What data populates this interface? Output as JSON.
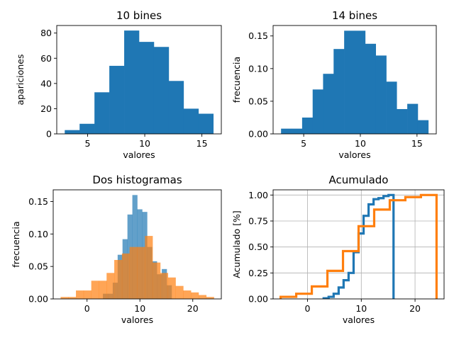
{
  "colors": {
    "blue": "#1f77b4",
    "orange": "#ff7f0e",
    "grid": "#b0b0b0"
  },
  "chart_data": [
    {
      "type": "bar",
      "title": "10 bines",
      "xlabel": "valores",
      "ylabel": "apariciones",
      "bin_edges": [
        3.0,
        4.3,
        5.6,
        6.9,
        8.2,
        9.5,
        10.8,
        12.1,
        13.4,
        14.7,
        16.0
      ],
      "values": [
        3,
        8,
        33,
        54,
        82,
        73,
        69,
        42,
        20,
        16
      ],
      "xlim": [
        2.3,
        16.7
      ],
      "ylim": [
        0,
        86
      ],
      "xticks": [
        5,
        10,
        15
      ],
      "yticks": [
        0,
        20,
        40,
        60,
        80
      ],
      "grid": false
    },
    {
      "type": "bar",
      "title": "14 bines",
      "xlabel": "valores",
      "ylabel": "frecuencia",
      "bin_edges": [
        3.0,
        3.93,
        4.86,
        5.79,
        6.71,
        7.64,
        8.57,
        9.5,
        10.43,
        11.36,
        12.29,
        13.21,
        14.14,
        15.07,
        16.0
      ],
      "values": [
        0.008,
        0.008,
        0.025,
        0.068,
        0.092,
        0.13,
        0.158,
        0.158,
        0.138,
        0.12,
        0.08,
        0.038,
        0.046,
        0.021
      ],
      "xlim": [
        2.3,
        16.7
      ],
      "ylim": [
        0,
        0.166
      ],
      "xticks": [
        5,
        10,
        15
      ],
      "yticks": [
        0.0,
        0.05,
        0.1,
        0.15
      ],
      "grid": false
    },
    {
      "type": "bar",
      "title": "Dos histogramas",
      "xlabel": "valores",
      "ylabel": "frecuencia",
      "xlim": [
        -6.4,
        25.4
      ],
      "ylim": [
        0,
        0.168
      ],
      "xticks": [
        0,
        10,
        20
      ],
      "yticks": [
        0.0,
        0.05,
        0.1,
        0.15
      ],
      "grid": false,
      "series": [
        {
          "color": "blue",
          "bin_edges": [
            3.0,
            3.93,
            4.86,
            5.79,
            6.71,
            7.64,
            8.57,
            9.5,
            10.43,
            11.36,
            12.29,
            13.21,
            14.14,
            15.07,
            16.0
          ],
          "values": [
            0.008,
            0.008,
            0.025,
            0.068,
            0.092,
            0.13,
            0.16,
            0.138,
            0.134,
            0.08,
            0.058,
            0.038,
            0.046,
            0.021
          ]
        },
        {
          "color": "orange",
          "bin_edges": [
            -5.0,
            -3.55,
            -2.1,
            -0.65,
            0.8,
            2.25,
            3.7,
            5.15,
            6.6,
            8.05,
            9.5,
            10.95,
            12.4,
            13.85,
            15.3,
            16.75,
            18.2,
            19.65,
            21.1,
            22.55,
            24.0
          ],
          "values": [
            0.003,
            0.003,
            0.013,
            0.013,
            0.028,
            0.028,
            0.04,
            0.06,
            0.07,
            0.08,
            0.08,
            0.097,
            0.056,
            0.04,
            0.033,
            0.02,
            0.013,
            0.01,
            0.006,
            0.003
          ]
        }
      ]
    },
    {
      "type": "line",
      "title": "Acumulado",
      "xlabel": "valores",
      "ylabel": "Acumulado [%]",
      "xlim": [
        -6.4,
        25.4
      ],
      "ylim": [
        0,
        1.05
      ],
      "xticks": [
        0,
        10,
        20
      ],
      "yticks": [
        0.0,
        0.25,
        0.5,
        0.75,
        1.0
      ],
      "grid": true,
      "series": [
        {
          "color": "blue",
          "bin_edges": [
            3.0,
            3.93,
            4.86,
            5.79,
            6.71,
            7.64,
            8.57,
            9.5,
            10.43,
            11.36,
            12.29,
            13.21,
            14.14,
            15.07,
            16.0
          ],
          "values": [
            0.006,
            0.02,
            0.05,
            0.11,
            0.18,
            0.25,
            0.45,
            0.63,
            0.8,
            0.91,
            0.96,
            0.97,
            0.99,
            1.0
          ]
        },
        {
          "color": "orange",
          "bin_edges": [
            -5.0,
            -2.1,
            0.8,
            3.7,
            6.6,
            9.5,
            12.4,
            15.3,
            18.2,
            21.1,
            24.0
          ],
          "values": [
            0.02,
            0.05,
            0.12,
            0.27,
            0.46,
            0.7,
            0.86,
            0.95,
            0.98,
            1.0
          ]
        }
      ]
    }
  ]
}
